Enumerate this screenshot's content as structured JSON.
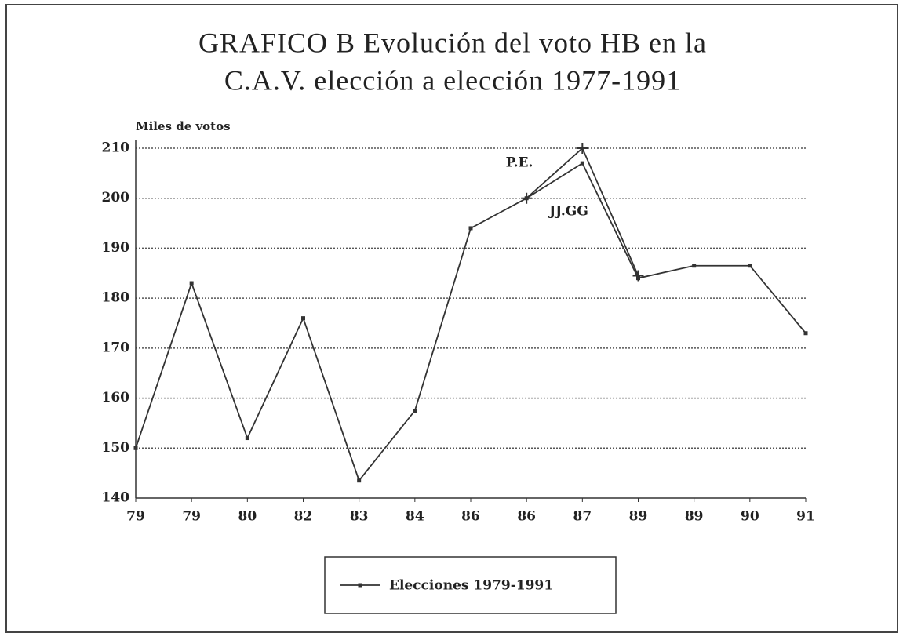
{
  "chart_data": {
    "type": "line",
    "title": [
      "GRAFICO B Evolución del voto HB en la",
      "C.A.V. elección a elección 1977-1991"
    ],
    "ylabel": "Miles de votos",
    "categories": [
      "79",
      "79",
      "80",
      "82",
      "83",
      "84",
      "86",
      "86",
      "87",
      "89",
      "89",
      "90",
      "91"
    ],
    "series": [
      {
        "name": "Elecciones 1979-1991",
        "color": "#333333",
        "marker": "dot",
        "values": [
          150,
          183,
          152,
          176,
          143.5,
          157.5,
          194,
          200,
          207,
          184,
          186.5,
          186.5,
          173
        ]
      },
      {
        "name": "P.E.",
        "color": "#333333",
        "marker": "plus",
        "values": [
          null,
          null,
          null,
          null,
          null,
          null,
          null,
          200,
          210,
          184.5,
          null,
          null,
          null
        ]
      }
    ],
    "annotations": [
      "JJ.GG"
    ],
    "ylim": [
      140,
      210
    ],
    "yticks": [
      140,
      150,
      160,
      170,
      180,
      190,
      200,
      210
    ],
    "grid": true
  }
}
